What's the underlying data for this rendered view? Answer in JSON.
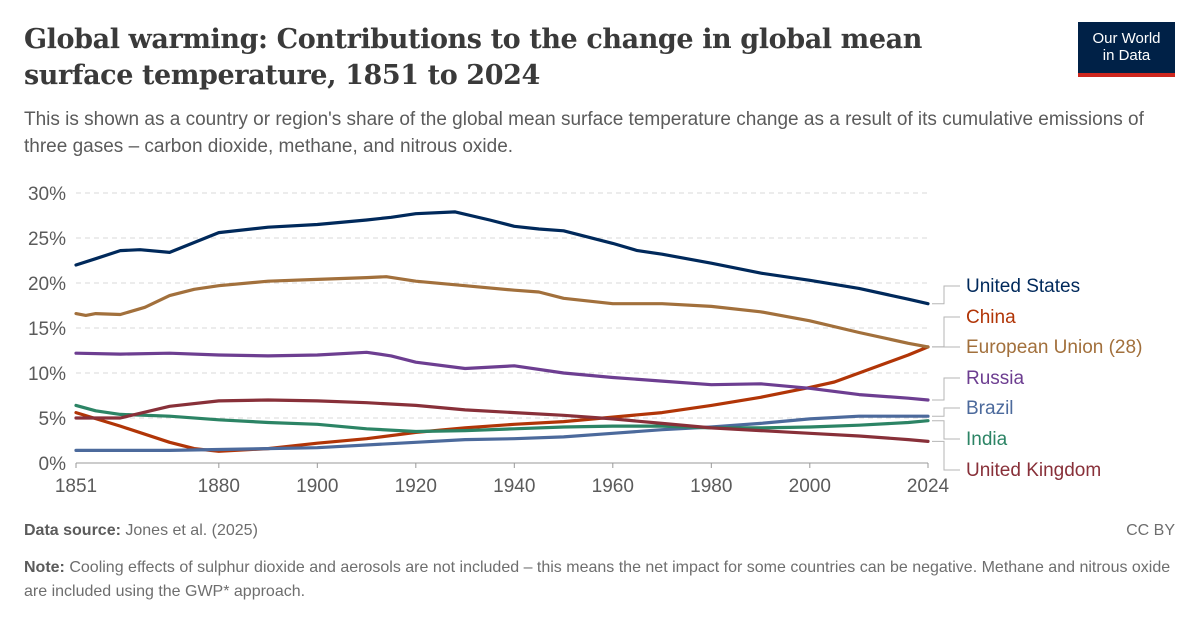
{
  "title": "Global warming: Contributions to the change in global mean surface temperature, 1851 to 2024",
  "subtitle": "This is shown as a country or region's share of the global mean surface temperature change as a result of its cumulative emissions of three gases – carbon dioxide, methane, and nitrous oxide.",
  "logo": {
    "line1": "Our World",
    "line2": "in Data",
    "bg": "#002147",
    "accent": "#ce261e"
  },
  "footer": {
    "source_label": "Data source:",
    "source": "Jones et al. (2025)",
    "license": "CC BY",
    "note_label": "Note:",
    "note": "Cooling effects of sulphur dioxide and aerosols are not included – this means the net impact for some countries can be negative. Methane and nitrous oxide are included using the GWP* approach."
  },
  "chart_data": {
    "type": "line",
    "xlim": [
      1851,
      2024
    ],
    "ylim": [
      0,
      30
    ],
    "x_ticks": [
      1851,
      1880,
      1900,
      1920,
      1940,
      1960,
      1980,
      2000,
      2024
    ],
    "x_tick_labels": [
      "1851",
      "1880",
      "1900",
      "1920",
      "1940",
      "1960",
      "1980",
      "2000",
      "2024"
    ],
    "y_ticks": [
      0,
      5,
      10,
      15,
      20,
      25,
      30
    ],
    "y_tick_labels": [
      "0%",
      "5%",
      "10%",
      "15%",
      "20%",
      "25%",
      "30%"
    ],
    "grid": "horizontal dashed",
    "legend": "right, end-of-line labels",
    "series": [
      {
        "name": "United States",
        "color": "#00295b",
        "x": [
          1851,
          1855,
          1860,
          1864,
          1870,
          1875,
          1880,
          1890,
          1900,
          1910,
          1915,
          1920,
          1928,
          1935,
          1940,
          1945,
          1950,
          1960,
          1965,
          1970,
          1980,
          1990,
          2000,
          2010,
          2020,
          2024
        ],
        "y": [
          22,
          22.7,
          23.6,
          23.7,
          23.4,
          24.5,
          25.6,
          26.2,
          26.5,
          27,
          27.3,
          27.7,
          27.9,
          27,
          26.3,
          26,
          25.8,
          24.4,
          23.6,
          23.2,
          22.2,
          21.1,
          20.3,
          19.4,
          18.2,
          17.7
        ]
      },
      {
        "name": "China",
        "color": "#b13507",
        "x": [
          1851,
          1860,
          1870,
          1875,
          1880,
          1890,
          1900,
          1910,
          1920,
          1930,
          1940,
          1950,
          1960,
          1970,
          1980,
          1990,
          2000,
          2005,
          2010,
          2020,
          2024
        ],
        "y": [
          5.6,
          4.1,
          2.3,
          1.6,
          1.3,
          1.6,
          2.2,
          2.7,
          3.4,
          3.9,
          4.3,
          4.6,
          5.1,
          5.6,
          6.4,
          7.3,
          8.4,
          9.0,
          10.0,
          12.0,
          12.9
        ]
      },
      {
        "name": "European Union (28)",
        "color": "#a2703c",
        "x": [
          1851,
          1853,
          1855,
          1860,
          1865,
          1870,
          1875,
          1880,
          1890,
          1900,
          1910,
          1914,
          1920,
          1930,
          1940,
          1945,
          1950,
          1960,
          1970,
          1980,
          1990,
          2000,
          2010,
          2020,
          2024
        ],
        "y": [
          16.6,
          16.4,
          16.6,
          16.5,
          17.3,
          18.6,
          19.3,
          19.7,
          20.2,
          20.4,
          20.6,
          20.7,
          20.2,
          19.7,
          19.2,
          19.0,
          18.3,
          17.7,
          17.7,
          17.4,
          16.8,
          15.8,
          14.5,
          13.3,
          12.9
        ]
      },
      {
        "name": "Russia",
        "color": "#6d3e91",
        "x": [
          1851,
          1860,
          1870,
          1880,
          1890,
          1900,
          1910,
          1915,
          1920,
          1930,
          1940,
          1950,
          1960,
          1970,
          1980,
          1990,
          2000,
          2010,
          2020,
          2024
        ],
        "y": [
          12.2,
          12.1,
          12.2,
          12.0,
          11.9,
          12.0,
          12.3,
          11.9,
          11.2,
          10.5,
          10.8,
          10.0,
          9.5,
          9.1,
          8.7,
          8.8,
          8.3,
          7.6,
          7.2,
          7.0
        ]
      },
      {
        "name": "Brazil",
        "color": "#4c6a9c",
        "x": [
          1851,
          1870,
          1880,
          1900,
          1920,
          1930,
          1940,
          1950,
          1960,
          1970,
          1980,
          1990,
          2000,
          2010,
          2024
        ],
        "y": [
          1.4,
          1.4,
          1.5,
          1.7,
          2.3,
          2.6,
          2.7,
          2.9,
          3.3,
          3.7,
          4.0,
          4.4,
          4.9,
          5.2,
          5.2
        ]
      },
      {
        "name": "India",
        "color": "#2c8465",
        "x": [
          1851,
          1855,
          1860,
          1870,
          1880,
          1890,
          1900,
          1910,
          1920,
          1930,
          1940,
          1950,
          1960,
          1970,
          1980,
          1990,
          2000,
          2010,
          2020,
          2024
        ],
        "y": [
          6.4,
          5.8,
          5.4,
          5.2,
          4.8,
          4.5,
          4.3,
          3.8,
          3.5,
          3.6,
          3.8,
          4.0,
          4.1,
          4.1,
          3.9,
          3.9,
          4.0,
          4.2,
          4.5,
          4.7
        ]
      },
      {
        "name": "United Kingdom",
        "color": "#883039",
        "x": [
          1851,
          1860,
          1870,
          1880,
          1890,
          1900,
          1910,
          1920,
          1930,
          1940,
          1950,
          1960,
          1970,
          1980,
          1990,
          2000,
          2010,
          2020,
          2024
        ],
        "y": [
          5.0,
          5.0,
          6.3,
          6.9,
          7.0,
          6.9,
          6.7,
          6.4,
          5.9,
          5.6,
          5.3,
          4.9,
          4.4,
          3.9,
          3.6,
          3.3,
          3.0,
          2.6,
          2.4
        ]
      }
    ]
  }
}
